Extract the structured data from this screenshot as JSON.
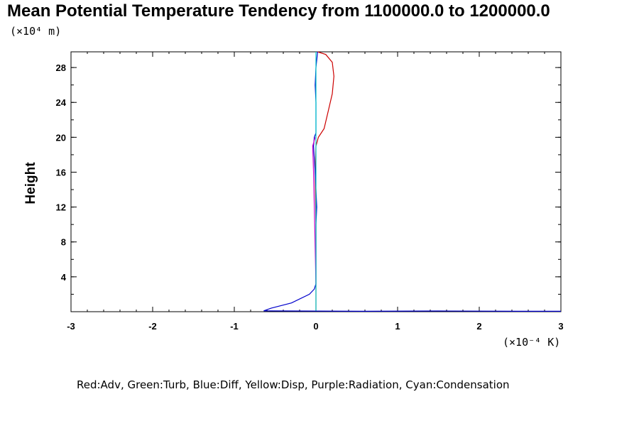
{
  "chart_data": {
    "type": "line",
    "title": "Mean Potential Temperature Tendency from 1100000.0 to 1200000.0",
    "ylabel": "Height",
    "y_unit_text": "(×10⁴ m)",
    "x_unit_text": "(×10⁻⁴ K)",
    "xlim": [
      -3,
      3
    ],
    "ylim": [
      0,
      29.8
    ],
    "x_ticks": [
      "-3",
      "-2",
      "-1",
      "0",
      "1",
      "2",
      "3"
    ],
    "y_ticks": [
      "4",
      "8",
      "12",
      "16",
      "20",
      "24",
      "28"
    ],
    "grid": false,
    "legend_text": "Red:Adv, Green:Turb, Blue:Diff, Yellow:Disp, Purple:Radiation, Cyan:Condensation",
    "series": [
      {
        "name": "Adv",
        "color": "#cc0000",
        "points": [
          [
            0,
            0.1
          ],
          [
            0,
            2.0
          ],
          [
            0,
            10.0
          ],
          [
            -0.01,
            16.0
          ],
          [
            0,
            19.0
          ],
          [
            0.03,
            20.0
          ],
          [
            0.1,
            21.0
          ],
          [
            0.15,
            23.0
          ],
          [
            0.2,
            25.0
          ],
          [
            0.22,
            27.0
          ],
          [
            0.2,
            28.6
          ],
          [
            0.12,
            29.5
          ],
          [
            0.02,
            29.8
          ]
        ]
      },
      {
        "name": "Diff",
        "color": "#0000cc",
        "points": [
          [
            -0.64,
            0.1
          ],
          [
            -0.55,
            0.4
          ],
          [
            -0.3,
            1.0
          ],
          [
            -0.08,
            2.0
          ],
          [
            -0.02,
            2.6
          ],
          [
            0,
            3.2
          ],
          [
            0,
            10.0
          ],
          [
            0.01,
            12.0
          ],
          [
            -0.01,
            16.0
          ],
          [
            -0.03,
            19.0
          ],
          [
            -0.02,
            20.0
          ],
          [
            0,
            20.5
          ],
          [
            0,
            21.0
          ],
          [
            0,
            22.0
          ],
          [
            0,
            24.0
          ],
          [
            -0.01,
            26.0
          ],
          [
            0,
            28.0
          ],
          [
            0.02,
            29.8
          ]
        ]
      },
      {
        "name": "Diff (surface)",
        "color": "#0000cc",
        "points": [
          [
            -0.64,
            0.1
          ],
          [
            0.6,
            0.05
          ],
          [
            1.5,
            0.08
          ],
          [
            2.5,
            0.05
          ],
          [
            3.0,
            0.05
          ]
        ]
      },
      {
        "name": "Radiation",
        "color": "#cc00cc",
        "points": [
          [
            0,
            3.0
          ],
          [
            -0.02,
            12.0
          ],
          [
            -0.03,
            16.0
          ],
          [
            -0.04,
            19.0
          ],
          [
            -0.01,
            20.0
          ]
        ]
      },
      {
        "name": "Condensation",
        "color": "#00cccc",
        "points": [
          [
            0,
            0.1
          ],
          [
            0,
            29.8
          ]
        ]
      }
    ]
  }
}
